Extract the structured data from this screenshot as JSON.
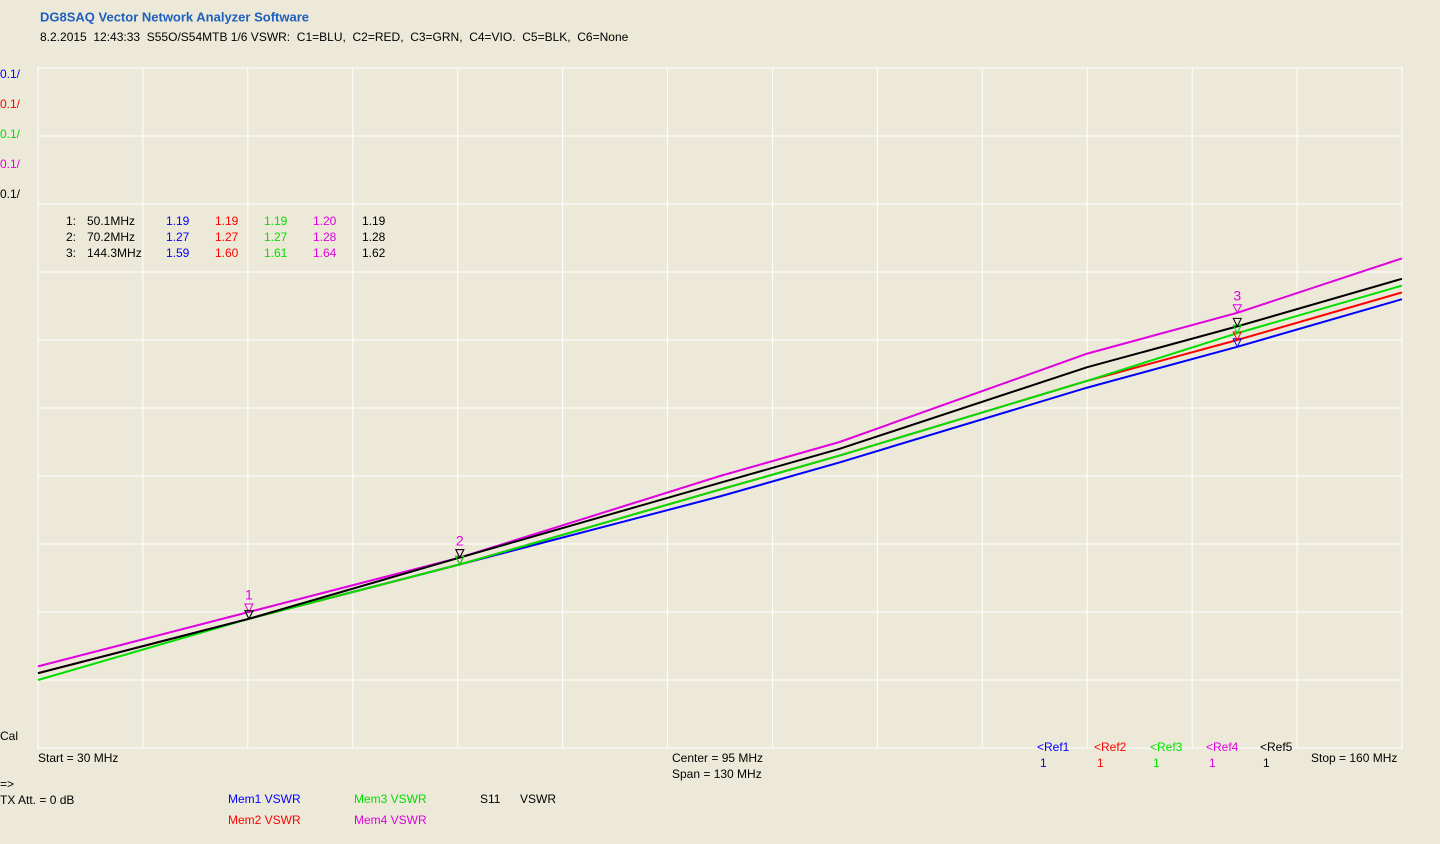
{
  "header": {
    "title": "DG8SAQ Vector Network Analyzer Software",
    "subtitle": "8.2.2015  12:43:33  S55O/S54MTB 1/6 VSWR:  C1=BLU,  C2=RED,  C3=GRN,  C4=VIO.  C5=BLK,  C6=None"
  },
  "chart_data": {
    "type": "line",
    "x": [
      30,
      50.1,
      70.2,
      95,
      106.4,
      130,
      144.3,
      160
    ],
    "xlim": [
      30,
      160
    ],
    "xticks": [
      30,
      40,
      50,
      60,
      70,
      80,
      90,
      100,
      110,
      120,
      130,
      140,
      150,
      160
    ],
    "ylim": [
      1.0,
      2.0
    ],
    "yticks": [
      1.0,
      1.1,
      1.2,
      1.3,
      1.4,
      1.5,
      1.6,
      1.7,
      1.8,
      1.9,
      2.0
    ],
    "grid": true,
    "series": [
      {
        "name": "Mem1 VSWR",
        "color": "#0000ff",
        "scale_label": "0.1/",
        "ref": "<Ref1",
        "ref_value": "1",
        "values": [
          1.11,
          1.19,
          1.27,
          1.37,
          1.42,
          1.53,
          1.59,
          1.66
        ]
      },
      {
        "name": "Mem2 VSWR",
        "color": "#ff0000",
        "scale_label": "0.1/",
        "ref": "<Ref2",
        "ref_value": "1",
        "values": [
          1.11,
          1.19,
          1.27,
          1.38,
          1.43,
          1.54,
          1.6,
          1.67
        ]
      },
      {
        "name": "Mem3 VSWR",
        "color": "#00e000",
        "scale_label": "0.1/",
        "ref": "<Ref3",
        "ref_value": "1",
        "values": [
          1.1,
          1.19,
          1.27,
          1.38,
          1.43,
          1.54,
          1.61,
          1.68
        ]
      },
      {
        "name": "Mem4 VSWR",
        "color": "#e000e0",
        "scale_label": "0.1/",
        "ref": "<Ref4",
        "ref_value": "1",
        "values": [
          1.12,
          1.2,
          1.28,
          1.4,
          1.45,
          1.58,
          1.64,
          1.72
        ]
      },
      {
        "name": "S11",
        "unit": "VSWR",
        "color": "#000000",
        "scale_label": "0.1/",
        "ref": "<Ref5",
        "ref_value": "1",
        "values": [
          1.11,
          1.19,
          1.28,
          1.39,
          1.44,
          1.56,
          1.62,
          1.69
        ]
      }
    ],
    "markers": [
      {
        "name": "1",
        "label": "1:",
        "x": 50.1,
        "x_label": "50.1MHz",
        "values": [
          1.19,
          1.19,
          1.19,
          1.2,
          1.19
        ],
        "value_labels": [
          "1.19",
          "1.19",
          "1.19",
          "1.20",
          "1.19"
        ]
      },
      {
        "name": "2",
        "label": "2:",
        "x": 70.2,
        "x_label": "70.2MHz",
        "values": [
          1.27,
          1.27,
          1.27,
          1.28,
          1.28
        ],
        "value_labels": [
          "1.27",
          "1.27",
          "1.27",
          "1.28",
          "1.28"
        ]
      },
      {
        "name": "3",
        "label": "3:",
        "x": 144.3,
        "x_label": "144.3MHz",
        "values": [
          1.59,
          1.6,
          1.61,
          1.64,
          1.62
        ],
        "value_labels": [
          "1.59",
          "1.60",
          "1.61",
          "1.64",
          "1.62"
        ]
      }
    ]
  },
  "footer": {
    "cal": "Cal",
    "start": "Start = 30 MHz",
    "center": "Center = 95 MHz",
    "span": "Span = 130 MHz",
    "stop": "Stop = 160 MHz",
    "arrow": "=>",
    "tx_att": "TX Att. = 0 dB"
  }
}
